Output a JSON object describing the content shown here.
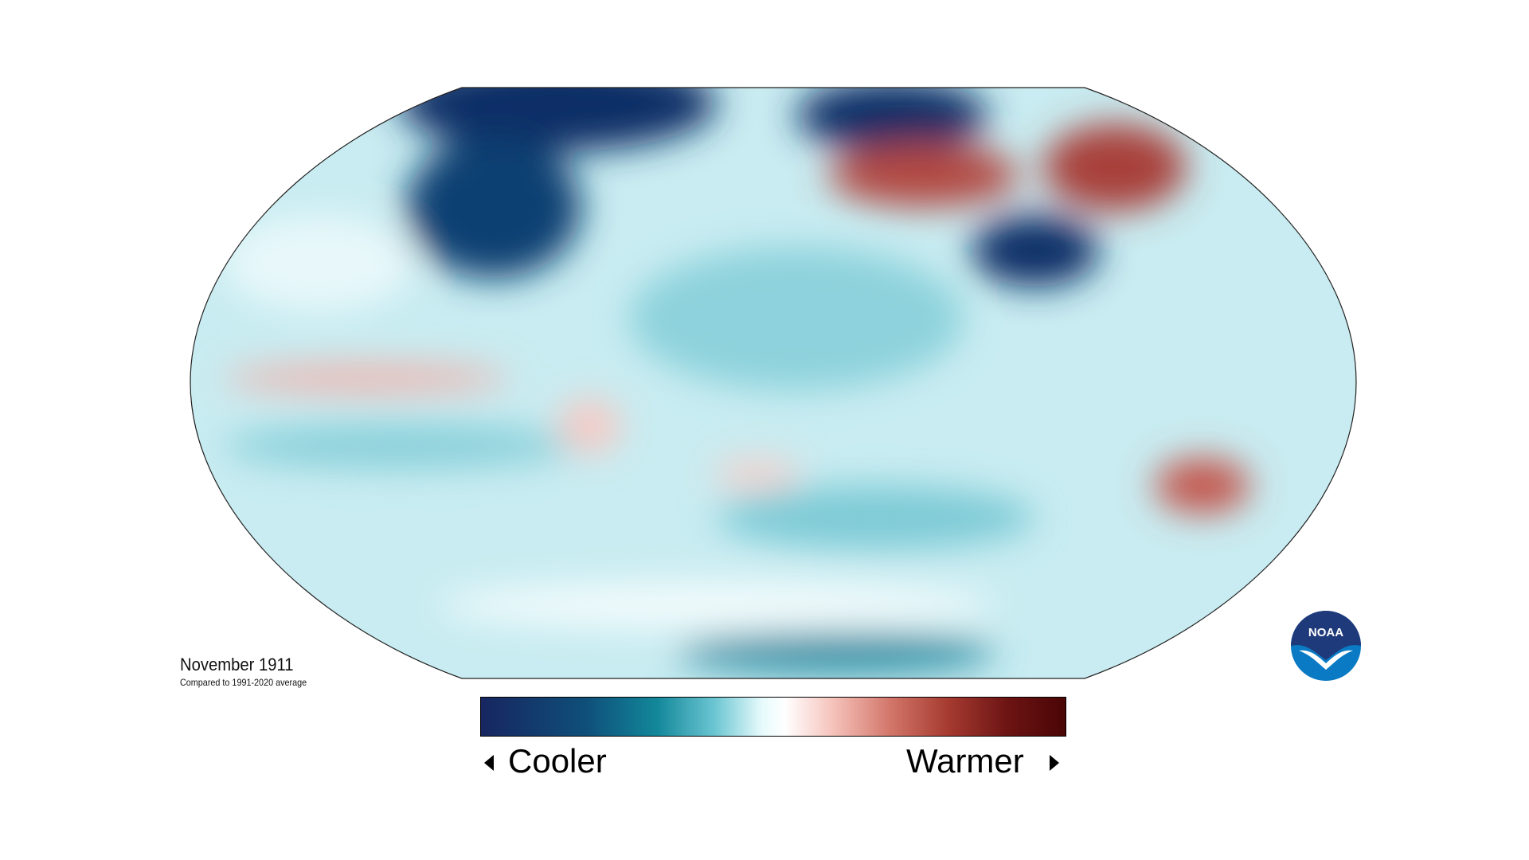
{
  "title": "November 1911",
  "subtitle": "Compared to 1991-2020 average",
  "legend": {
    "cooler_label": "Cooler",
    "warmer_label": "Warmer",
    "colors": [
      "#172660",
      "#12879a",
      "#ffffff",
      "#d3766a",
      "#4a0505"
    ]
  },
  "logo": {
    "text": "NOAA",
    "color_top": "#1f3a7a",
    "color_bottom": "#0a7ac4"
  },
  "map": {
    "background": "#cdeef3",
    "projection": "Robinson"
  }
}
